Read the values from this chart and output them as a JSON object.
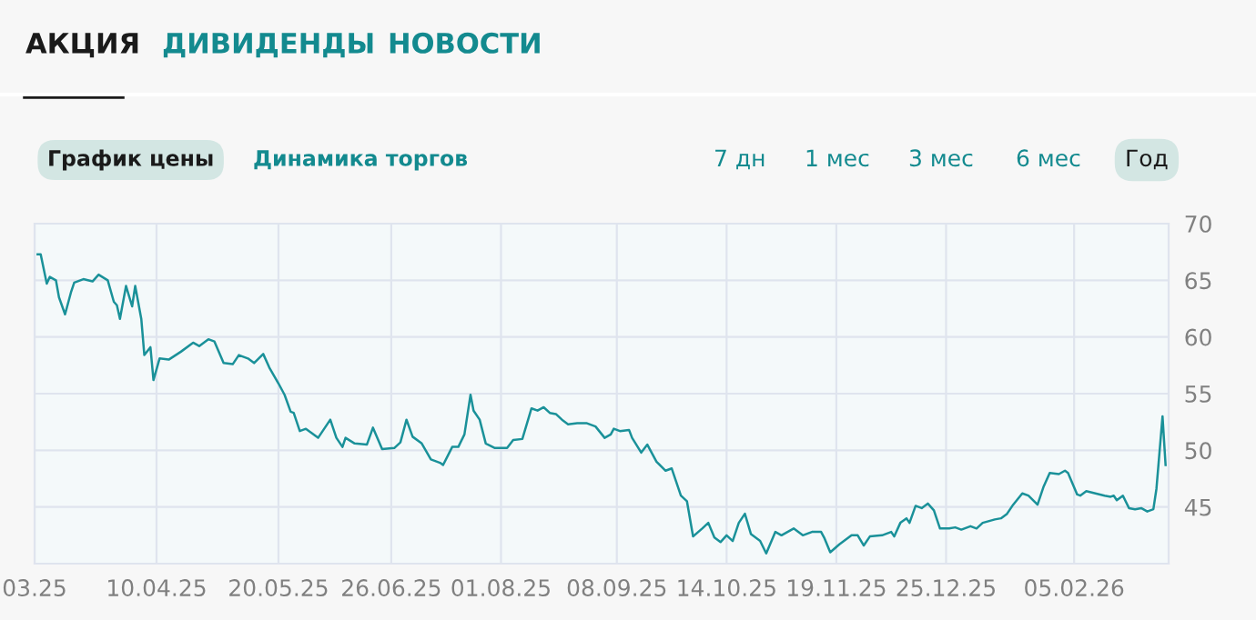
{
  "chart_data": {
    "type": "line",
    "annotations": [
      "АКЦИЯ",
      "ДИВИДЕНДЫ",
      "НОВОСТИ",
      "График цены",
      "Динамика торгов",
      "7 дн",
      "1 мес",
      "3 мес",
      "6 мес",
      "Год"
    ],
    "series": [
      {
        "color": "#1a9199",
        "x": [
          "2025-03-02",
          "2025-03-03",
          "2025-03-05",
          "2025-03-06",
          "2025-03-08",
          "2025-03-09",
          "2025-03-11",
          "2025-03-13",
          "2025-03-14",
          "2025-03-17",
          "2025-03-20",
          "2025-03-22",
          "2025-03-25",
          "2025-03-27",
          "2025-03-28",
          "2025-03-29",
          "2025-03-31",
          "2025-04-02",
          "2025-04-03",
          "2025-04-05",
          "2025-04-06",
          "2025-04-08",
          "2025-04-09",
          "2025-04-11",
          "2025-04-14",
          "2025-04-18",
          "2025-04-22",
          "2025-04-24",
          "2025-04-27",
          "2025-04-29",
          "2025-05-02",
          "2025-05-05",
          "2025-05-07",
          "2025-05-10",
          "2025-05-12",
          "2025-05-15",
          "2025-05-17",
          "2025-05-20",
          "2025-05-22",
          "2025-05-24",
          "2025-05-25",
          "2025-05-27",
          "2025-05-29",
          "2025-06-02",
          "2025-06-04",
          "2025-06-06",
          "2025-06-08",
          "2025-06-10",
          "2025-06-11",
          "2025-06-14",
          "2025-06-18",
          "2025-06-20",
          "2025-06-23",
          "2025-06-27",
          "2025-06-29",
          "2025-07-01",
          "2025-07-03",
          "2025-07-06",
          "2025-07-09",
          "2025-07-12",
          "2025-07-13",
          "2025-07-16",
          "2025-07-18",
          "2025-07-20",
          "2025-07-22",
          "2025-07-23",
          "2025-07-25",
          "2025-07-27",
          "2025-07-30",
          "2025-08-03",
          "2025-08-05",
          "2025-08-08",
          "2025-08-11",
          "2025-08-13",
          "2025-08-15",
          "2025-08-17",
          "2025-08-19",
          "2025-08-21",
          "2025-08-23",
          "2025-08-26",
          "2025-08-29",
          "2025-09-01",
          "2025-09-04",
          "2025-09-06",
          "2025-09-07",
          "2025-09-09",
          "2025-09-12",
          "2025-09-13",
          "2025-09-16",
          "2025-09-18",
          "2025-09-21",
          "2025-09-24",
          "2025-09-26",
          "2025-09-29",
          "2025-10-01",
          "2025-10-03",
          "2025-10-06",
          "2025-10-08",
          "2025-10-10",
          "2025-10-12",
          "2025-10-14",
          "2025-10-16",
          "2025-10-18",
          "2025-10-20",
          "2025-10-22",
          "2025-10-25",
          "2025-10-27",
          "2025-10-30",
          "2025-11-01",
          "2025-11-05",
          "2025-11-08",
          "2025-11-11",
          "2025-11-14",
          "2025-11-15",
          "2025-11-17",
          "2025-11-20",
          "2025-11-22",
          "2025-11-24",
          "2025-11-26",
          "2025-11-28",
          "2025-11-30",
          "2025-12-04",
          "2025-12-07",
          "2025-12-08",
          "2025-12-10",
          "2025-12-12",
          "2025-12-13",
          "2025-12-15",
          "2025-12-17",
          "2025-12-19",
          "2025-12-21",
          "2025-12-23",
          "2025-12-26",
          "2025-12-28",
          "2025-12-30",
          "2026-01-02",
          "2026-01-04",
          "2026-01-06",
          "2026-01-10",
          "2026-01-12",
          "2026-01-14",
          "2026-01-16",
          "2026-01-19",
          "2026-01-21",
          "2026-01-24",
          "2026-01-26",
          "2026-01-28",
          "2026-01-31",
          "2026-02-02",
          "2026-02-03",
          "2026-02-06",
          "2026-02-07",
          "2026-02-09",
          "2026-02-12",
          "2026-02-15",
          "2026-02-17",
          "2026-02-18",
          "2026-02-19",
          "2026-02-21",
          "2026-02-23",
          "2026-02-25",
          "2026-02-27",
          "2026-03-01",
          "2026-03-03",
          "2026-03-04",
          "2026-03-06",
          "2026-03-07"
        ],
        "values": [
          67.3,
          67.3,
          64.7,
          65.3,
          65.0,
          63.5,
          62.0,
          64.0,
          64.8,
          65.1,
          64.9,
          65.5,
          65.0,
          63.1,
          62.8,
          61.6,
          64.5,
          62.7,
          64.5,
          61.6,
          58.4,
          59.1,
          56.2,
          58.1,
          58.0,
          58.7,
          59.5,
          59.2,
          59.8,
          59.6,
          57.7,
          57.6,
          58.4,
          58.1,
          57.7,
          58.5,
          57.3,
          55.9,
          54.9,
          53.4,
          53.3,
          51.7,
          51.9,
          51.1,
          51.9,
          52.7,
          51.1,
          50.3,
          51.1,
          50.6,
          50.5,
          52.0,
          50.1,
          50.2,
          50.7,
          52.7,
          51.2,
          50.6,
          49.2,
          48.9,
          48.7,
          50.3,
          50.3,
          51.4,
          54.9,
          53.5,
          52.7,
          50.6,
          50.2,
          50.2,
          50.9,
          51.0,
          53.7,
          53.5,
          53.8,
          53.3,
          53.2,
          52.7,
          52.3,
          52.4,
          52.4,
          52.1,
          51.1,
          51.4,
          51.9,
          51.7,
          51.8,
          51.1,
          49.8,
          50.5,
          49.0,
          48.2,
          48.4,
          46.0,
          45.5,
          42.4,
          43.1,
          43.6,
          42.3,
          41.9,
          42.5,
          42.0,
          43.6,
          44.4,
          42.6,
          42.0,
          40.9,
          42.8,
          42.5,
          43.1,
          42.5,
          42.8,
          42.8,
          42.3,
          41.0,
          41.7,
          42.1,
          42.5,
          42.5,
          41.6,
          42.4,
          42.5,
          42.8,
          42.4,
          43.6,
          44.0,
          43.6,
          45.1,
          44.9,
          45.3,
          44.7,
          43.1,
          43.1,
          43.2,
          43.0,
          43.3,
          43.1,
          43.6,
          43.9,
          44.0,
          44.4,
          45.2,
          46.2,
          46.0,
          45.2,
          46.8,
          48.0,
          47.9,
          48.2,
          48.0,
          46.1,
          46.0,
          46.4,
          46.2,
          46.0,
          45.9,
          46.0,
          45.6,
          46.0,
          44.9,
          44.8,
          44.9,
          44.6,
          44.8,
          46.6,
          53.0,
          48.7
        ]
      }
    ],
    "xlim": [
      "2025-03-01",
      "2026-03-08"
    ],
    "xticks": [
      {
        "value": "2025-03",
        "label": "03.25"
      },
      {
        "value": "2025-04-10",
        "label": "10.04.25"
      },
      {
        "value": "2025-05-20",
        "label": "20.05.25"
      },
      {
        "value": "2025-06-26",
        "label": "26.06.25"
      },
      {
        "value": "2025-08-01",
        "label": "01.08.25"
      },
      {
        "value": "2025-09-08",
        "label": "08.09.25"
      },
      {
        "value": "2025-10-14",
        "label": "14.10.25"
      },
      {
        "value": "2025-11-19",
        "label": "19.11.25"
      },
      {
        "value": "2025-12-25",
        "label": "25.12.25"
      },
      {
        "value": "2026-02-05",
        "label": "05.02.26"
      }
    ],
    "ylim": [
      40,
      70
    ],
    "yticks": [
      {
        "value": 40,
        "label": null
      },
      45,
      50,
      55,
      60,
      65,
      70
    ],
    "grid": true,
    "marker": "none",
    "line_style": "solid"
  }
}
